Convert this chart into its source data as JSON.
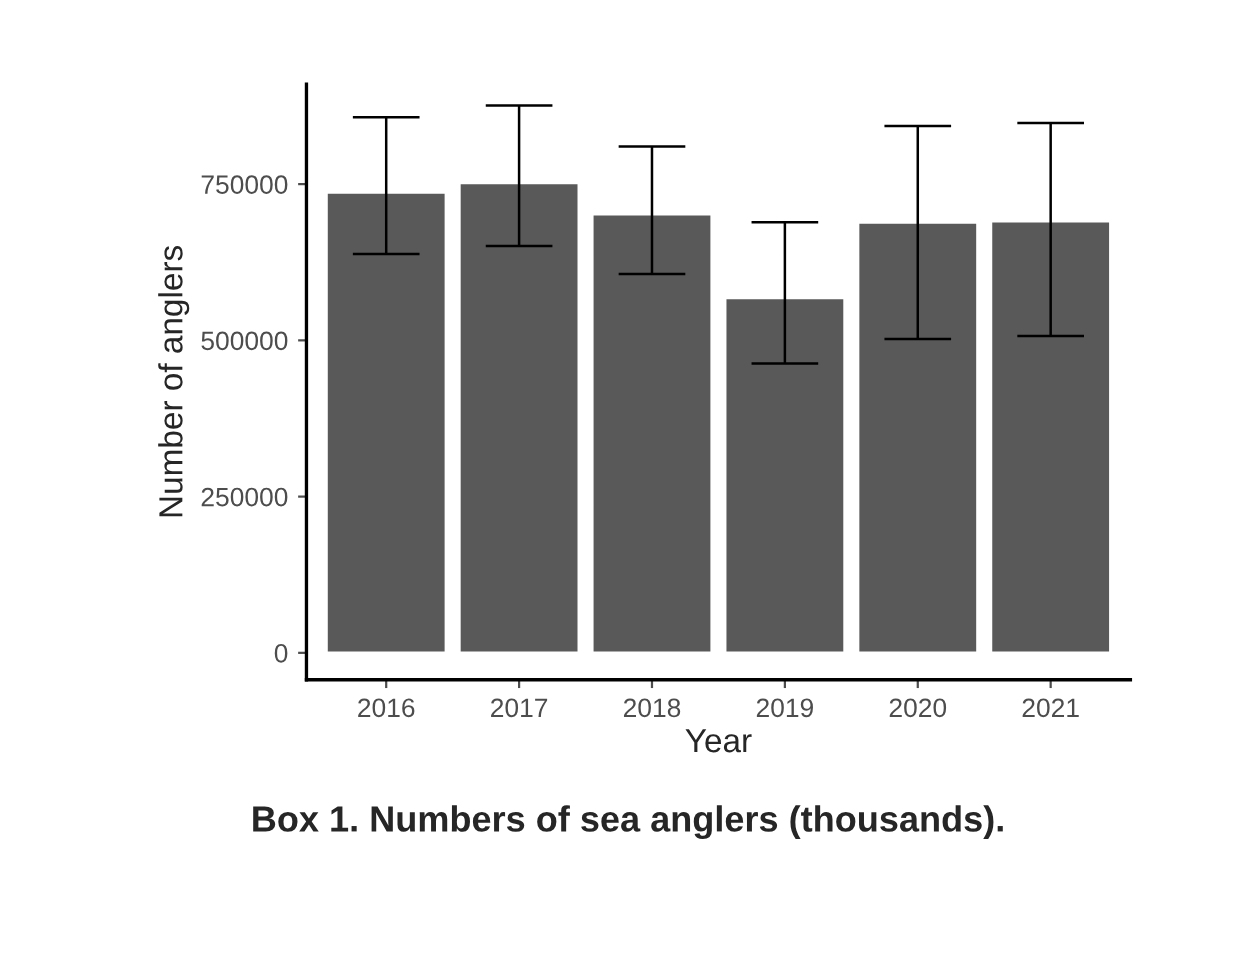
{
  "chart_data": {
    "type": "bar",
    "xlabel": "Year",
    "ylabel": "Number of anglers",
    "categories": [
      "2016",
      "2017",
      "2018",
      "2019",
      "2020",
      "2021"
    ],
    "values": [
      737000,
      752000,
      702000,
      568000,
      689000,
      691000
    ],
    "errors": [
      [
        638000,
        857000
      ],
      [
        651000,
        876000
      ],
      [
        606000,
        810000
      ],
      [
        463000,
        689000
      ],
      [
        502000,
        843000
      ],
      [
        507000,
        848000
      ]
    ],
    "color": "#595959",
    "ylim": [
      -43000,
      910000
    ],
    "yticks": [
      0,
      250000,
      500000,
      750000
    ],
    "grid": false,
    "legend": false,
    "annotations": [
      "Box 1. Numbers of sea anglers (thousands)."
    ]
  }
}
